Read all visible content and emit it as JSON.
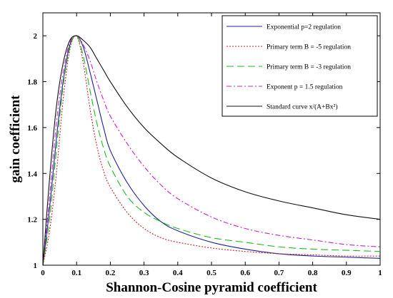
{
  "chart_data": {
    "type": "line",
    "title": "",
    "xlabel": "Shannon-Cosine pyramid coefficient",
    "ylabel": "gain coefficient",
    "xlim": [
      0,
      1
    ],
    "ylim": [
      1,
      2.1
    ],
    "xticks": [
      "0",
      "0.1",
      "0.2",
      "0.3",
      "0.4",
      "0.5",
      "0.6",
      "0.7",
      "0.8",
      "0.9",
      "1"
    ],
    "yticks": [
      "1",
      "1.2",
      "1.4",
      "1.6",
      "1.8",
      "2"
    ],
    "grid": false,
    "legend_position": "top-right",
    "series": [
      {
        "name": "Exponential p=2 regulation",
        "color": "#1f1f9a",
        "dash": "solid",
        "x": [
          0,
          0.02,
          0.04,
          0.06,
          0.08,
          0.1,
          0.12,
          0.14,
          0.16,
          0.18,
          0.2,
          0.25,
          0.3,
          0.35,
          0.4,
          0.5,
          0.6,
          0.7,
          0.8,
          0.9,
          1.0
        ],
        "y": [
          1.0,
          1.25,
          1.55,
          1.8,
          1.96,
          2.0,
          1.95,
          1.84,
          1.72,
          1.6,
          1.5,
          1.36,
          1.26,
          1.19,
          1.15,
          1.1,
          1.07,
          1.05,
          1.04,
          1.035,
          1.03
        ]
      },
      {
        "name": "Primary term B = -5 regulation",
        "color": "#cc2222",
        "dash": "dotted",
        "x": [
          0,
          0.02,
          0.04,
          0.06,
          0.08,
          0.1,
          0.12,
          0.14,
          0.16,
          0.18,
          0.2,
          0.25,
          0.3,
          0.35,
          0.4,
          0.5,
          0.6,
          0.7,
          0.8,
          0.9,
          1.0
        ],
        "y": [
          1.0,
          1.15,
          1.4,
          1.72,
          1.94,
          2.0,
          1.88,
          1.68,
          1.52,
          1.41,
          1.34,
          1.23,
          1.16,
          1.12,
          1.1,
          1.075,
          1.06,
          1.05,
          1.045,
          1.04,
          1.04
        ]
      },
      {
        "name": "Primary term B = -3 regulation",
        "color": "#22bb22",
        "dash": "longdash",
        "x": [
          0,
          0.02,
          0.04,
          0.06,
          0.08,
          0.1,
          0.12,
          0.14,
          0.16,
          0.18,
          0.2,
          0.25,
          0.3,
          0.35,
          0.4,
          0.5,
          0.6,
          0.7,
          0.8,
          0.9,
          1.0
        ],
        "y": [
          1.0,
          1.2,
          1.5,
          1.78,
          1.95,
          2.0,
          1.91,
          1.76,
          1.62,
          1.51,
          1.43,
          1.3,
          1.23,
          1.19,
          1.16,
          1.12,
          1.1,
          1.08,
          1.07,
          1.065,
          1.06
        ]
      },
      {
        "name": "Exponent p = 1.5 regulation",
        "color": "#cc22cc",
        "dash": "dashdot",
        "x": [
          0,
          0.02,
          0.04,
          0.06,
          0.08,
          0.1,
          0.12,
          0.14,
          0.16,
          0.18,
          0.2,
          0.25,
          0.3,
          0.35,
          0.4,
          0.5,
          0.6,
          0.7,
          0.8,
          0.9,
          1.0
        ],
        "y": [
          1.0,
          1.3,
          1.62,
          1.84,
          1.97,
          2.0,
          1.96,
          1.89,
          1.8,
          1.72,
          1.65,
          1.53,
          1.43,
          1.35,
          1.29,
          1.21,
          1.16,
          1.13,
          1.11,
          1.09,
          1.08
        ]
      },
      {
        "name": "Standard curve x/(A+Bx²)",
        "color": "#111111",
        "dash": "solid",
        "x": [
          0,
          0.02,
          0.04,
          0.06,
          0.08,
          0.1,
          0.12,
          0.14,
          0.16,
          0.18,
          0.2,
          0.25,
          0.3,
          0.35,
          0.4,
          0.5,
          0.6,
          0.7,
          0.8,
          0.9,
          1.0
        ],
        "y": [
          1.0,
          1.38,
          1.69,
          1.88,
          1.98,
          2.0,
          1.98,
          1.95,
          1.9,
          1.85,
          1.8,
          1.69,
          1.6,
          1.53,
          1.47,
          1.38,
          1.32,
          1.28,
          1.25,
          1.22,
          1.2
        ]
      }
    ]
  }
}
